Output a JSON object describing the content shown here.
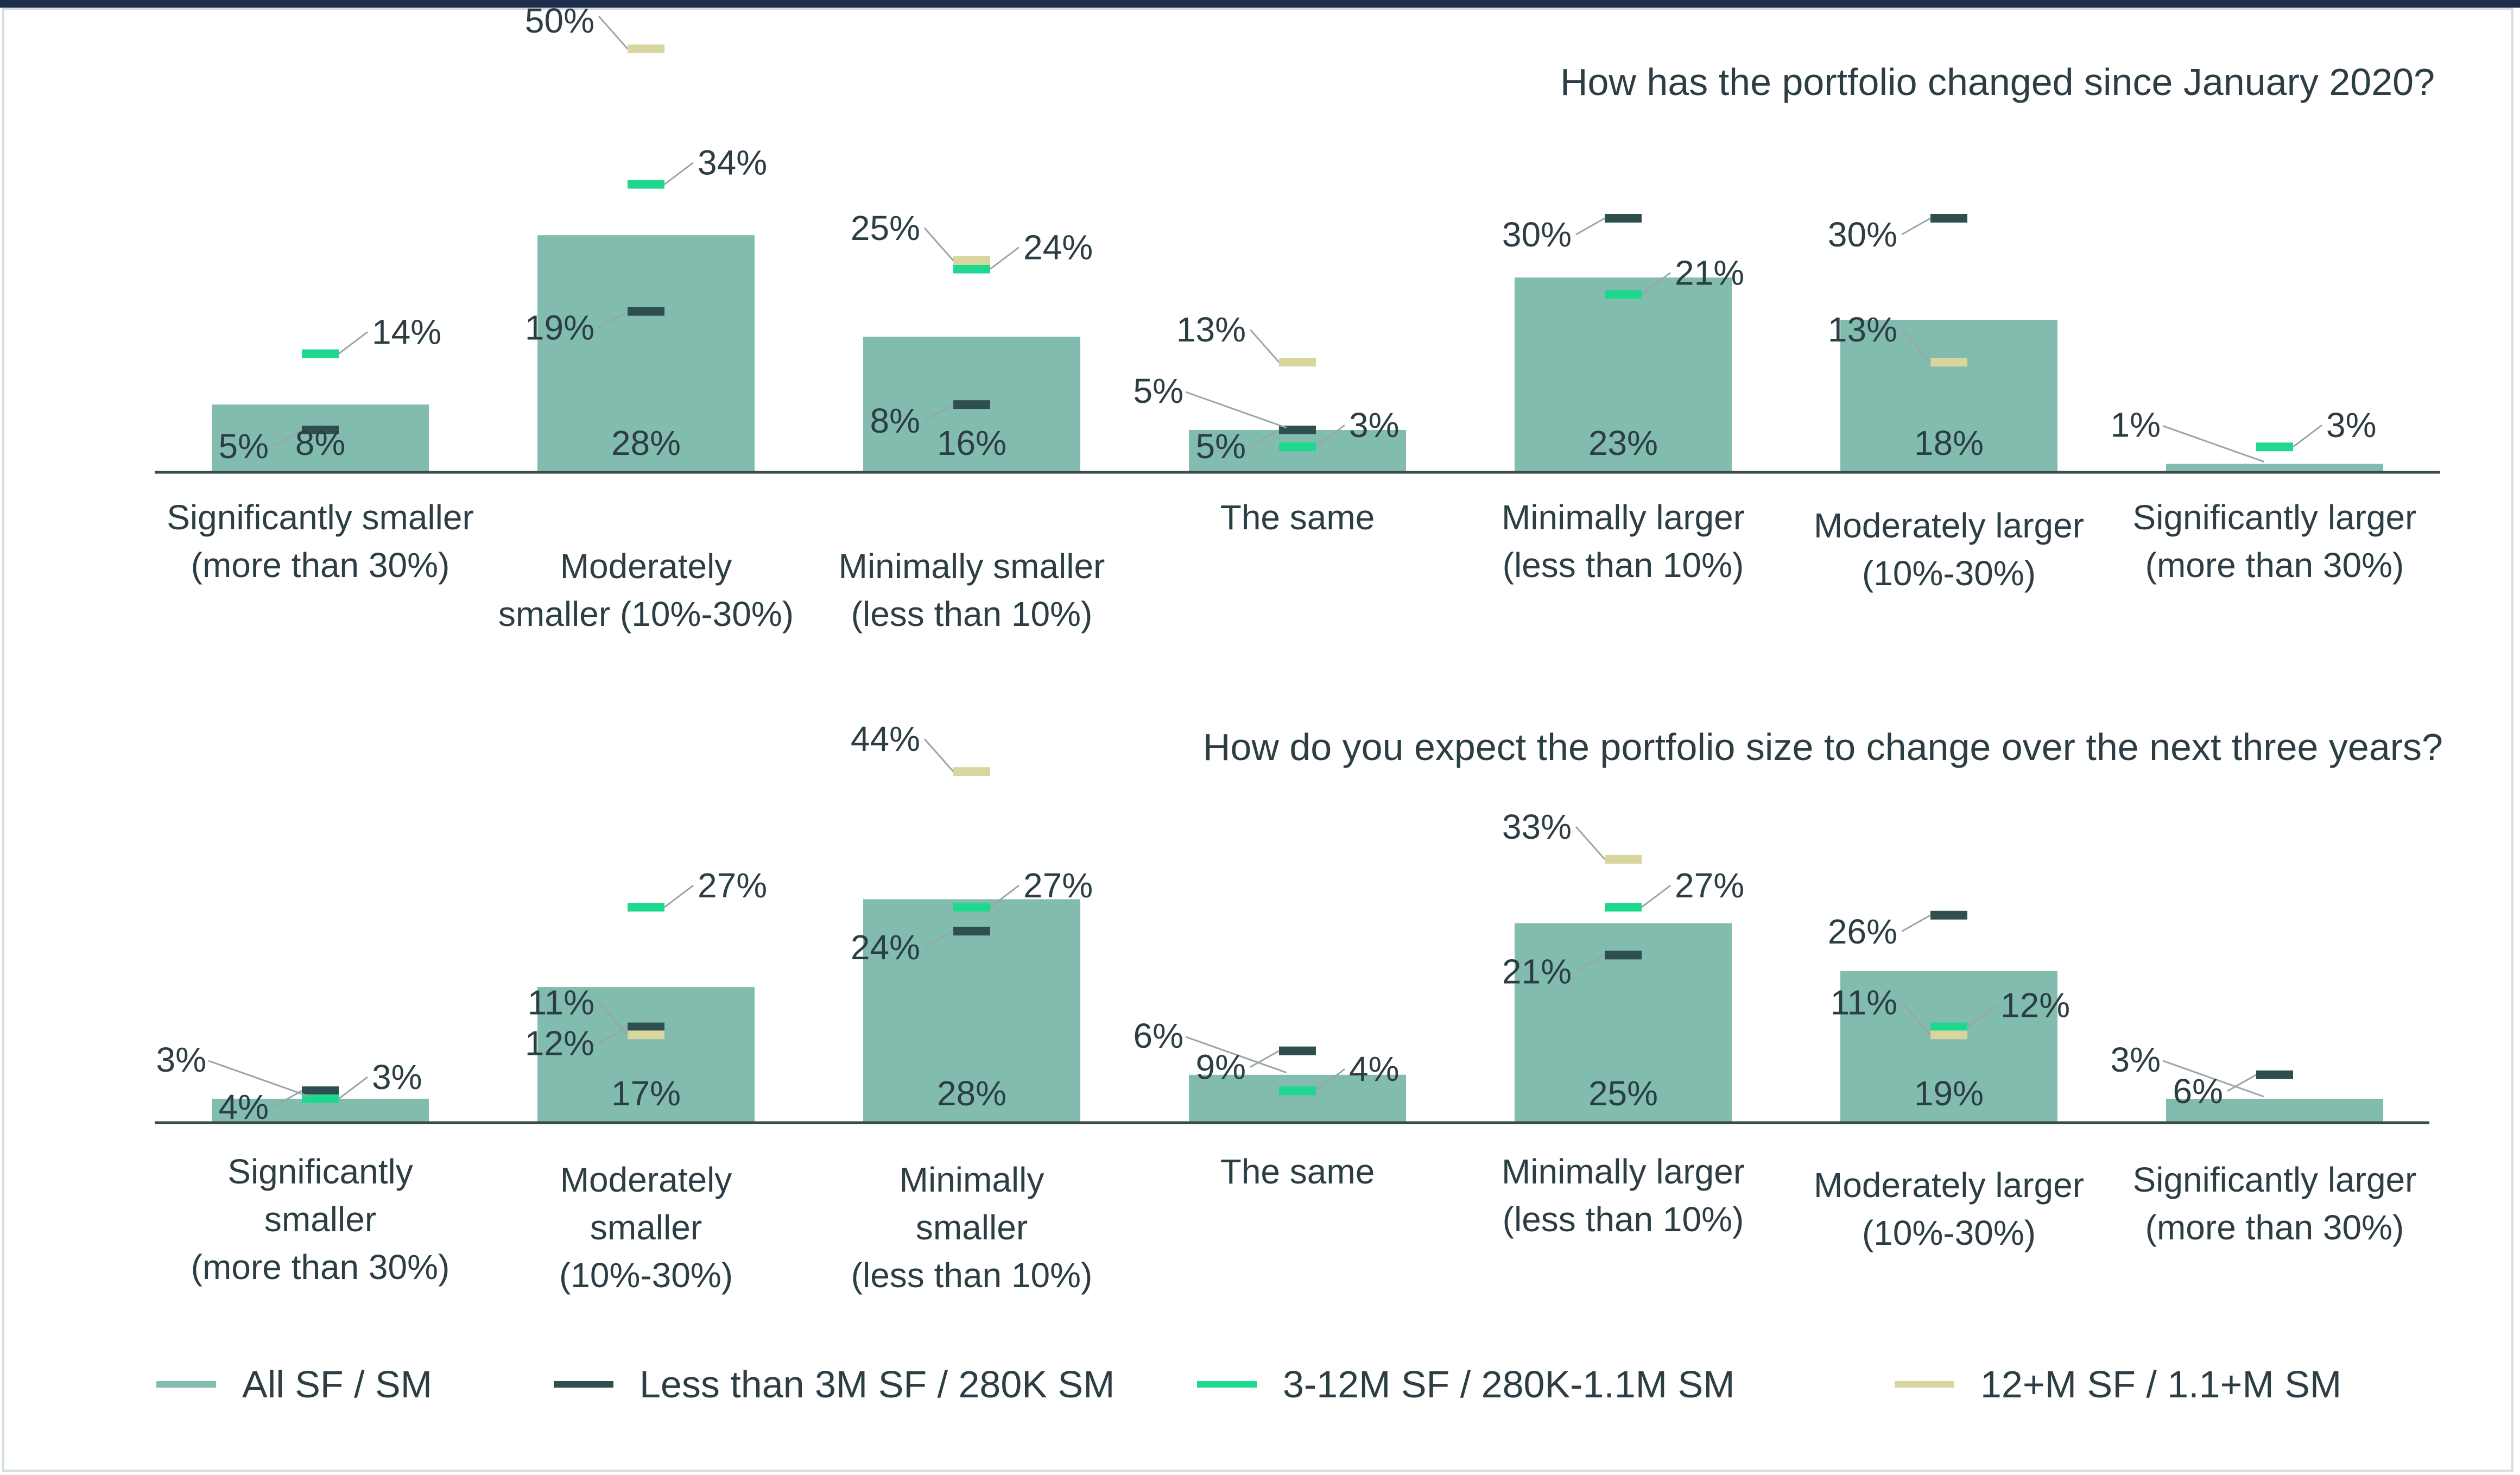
{
  "colors": {
    "all": "#82bcaf",
    "small": "#2f4f4f",
    "medium": "#1fd88f",
    "large": "#d9d59e",
    "text": "#2c3e44",
    "axis": "#3a4a4a",
    "leader": "#9aa6a6"
  },
  "legend": [
    {
      "key": "all",
      "label": "All SF / SM"
    },
    {
      "key": "small",
      "label": "Less than 3M SF / 280K SM"
    },
    {
      "key": "medium",
      "label": "3-12M SF / 280K-1.1M SM"
    },
    {
      "key": "large",
      "label": "12+M SF / 1.1+M SM"
    }
  ],
  "chart_data": [
    {
      "type": "bar",
      "title": "How has the portfolio changed since January 2020?",
      "categories": [
        [
          "Significantly smaller",
          "(more than 30%)"
        ],
        [
          "Moderately",
          "smaller (10%-30%)"
        ],
        [
          "Minimally smaller",
          "(less than 10%)"
        ],
        [
          "The same"
        ],
        [
          "Minimally larger",
          "(less than 10%)"
        ],
        [
          "Moderately larger",
          "(10%-30%)"
        ],
        [
          "Significantly larger",
          "(more than 30%)"
        ]
      ],
      "ylim": [
        0,
        55
      ],
      "series": [
        {
          "key": "all",
          "name": "All SF / SM",
          "values": [
            8,
            28,
            16,
            5,
            23,
            18,
            1
          ],
          "labels": [
            "8%",
            "28%",
            "16%",
            "5%",
            "23%",
            "18%",
            "1%"
          ]
        },
        {
          "key": "small",
          "name": "Less than 3M SF / 280K SM",
          "values": [
            5,
            19,
            8,
            5,
            30,
            30,
            null
          ],
          "labels": [
            "5%",
            "19%",
            "8%",
            "5%",
            "30%",
            "30%",
            ""
          ]
        },
        {
          "key": "medium",
          "name": "3-12M SF / 280K-1.1M SM",
          "values": [
            14,
            34,
            24,
            3,
            21,
            null,
            3
          ],
          "labels": [
            "14%",
            "34%",
            "24%",
            "3%",
            "21%",
            "",
            "3%"
          ]
        },
        {
          "key": "large",
          "name": "12+M SF / 1.1+M SM",
          "values": [
            null,
            50,
            25,
            13,
            null,
            13,
            null
          ],
          "labels": [
            "",
            "50%",
            "25%",
            "13%",
            "",
            "13%",
            ""
          ]
        }
      ]
    },
    {
      "type": "bar",
      "title": "How do you expect the portfolio size to change over the next three years?",
      "categories": [
        [
          "Significantly",
          "smaller",
          "(more than 30%)"
        ],
        [
          "Moderately",
          "smaller",
          "(10%-30%)"
        ],
        [
          "Minimally",
          "smaller",
          "(less than 10%)"
        ],
        [
          "The same"
        ],
        [
          "Minimally larger",
          "(less than 10%)"
        ],
        [
          "Moderately larger",
          "(10%-30%)"
        ],
        [
          "Significantly larger",
          "(more than 30%)"
        ]
      ],
      "ylim": [
        0,
        48
      ],
      "series": [
        {
          "key": "all",
          "name": "All SF / SM",
          "values": [
            3,
            17,
            28,
            6,
            25,
            19,
            3
          ],
          "labels": [
            "3%",
            "17%",
            "28%",
            "6%",
            "25%",
            "19%",
            "3%"
          ]
        },
        {
          "key": "small",
          "name": "Less than 3M SF / 280K SM",
          "values": [
            4,
            12,
            24,
            9,
            21,
            26,
            6
          ],
          "labels": [
            "4%",
            "12%",
            "24%",
            "9%",
            "21%",
            "26%",
            "6%"
          ]
        },
        {
          "key": "medium",
          "name": "3-12M SF / 280K-1.1M SM",
          "values": [
            3,
            27,
            27,
            4,
            27,
            12,
            null
          ],
          "labels": [
            "3%",
            "27%",
            "27%",
            "4%",
            "27%",
            "12%",
            ""
          ]
        },
        {
          "key": "large",
          "name": "12+M SF / 1.1+M SM",
          "values": [
            null,
            11,
            44,
            null,
            33,
            11,
            null
          ],
          "labels": [
            "",
            "11%",
            "44%",
            "",
            "33%",
            "11%",
            ""
          ]
        }
      ]
    }
  ]
}
